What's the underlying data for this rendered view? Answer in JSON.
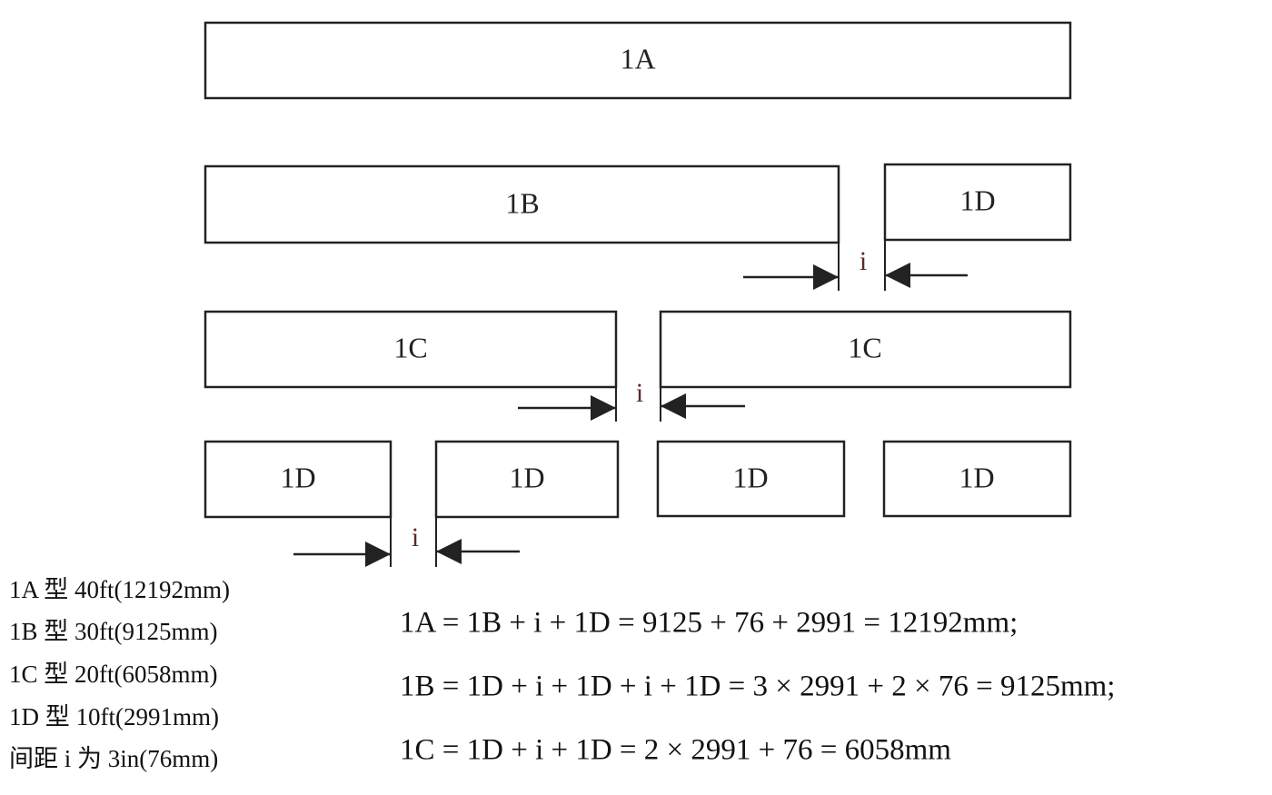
{
  "boxes": [
    "1A",
    "1B",
    "1D",
    "1C",
    "1C",
    "1D",
    "1D",
    "1D",
    "1D"
  ],
  "gaps": [
    "i",
    "i",
    "i"
  ],
  "legend": [
    "1A 型 40ft(12192mm)",
    "1B 型 30ft(9125mm)",
    "1C 型 20ft(6058mm)",
    "1D 型 10ft(2991mm)",
    "间距 i 为 3in(76mm)"
  ],
  "equations": [
    "1A = 1B + i + 1D = 9125 + 76 + 2991 = 12192mm;",
    "1B = 1D + i + 1D + i + 1D = 3 × 2991 + 2 × 76 = 9125mm;",
    "1C = 1D + i + 1D = 2 × 2991 + 76 = 6058mm"
  ]
}
